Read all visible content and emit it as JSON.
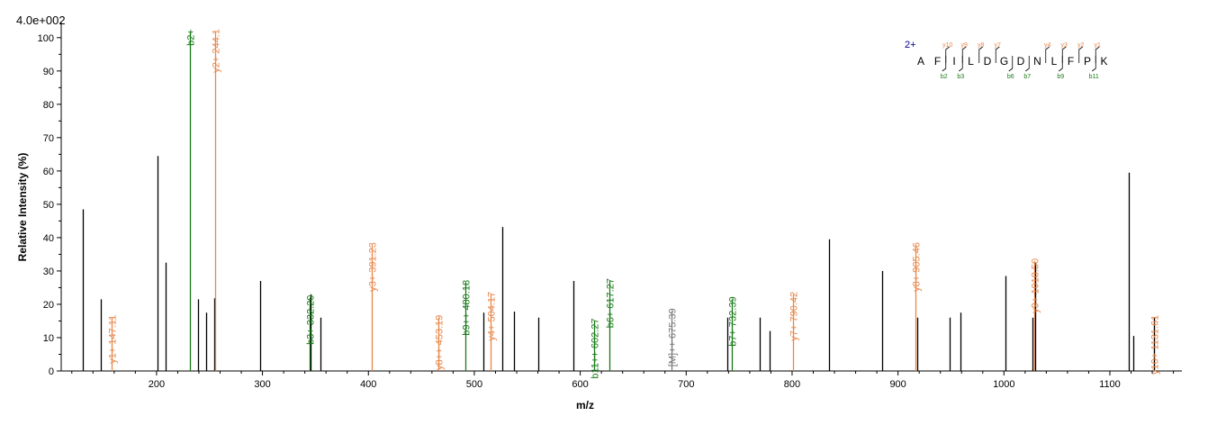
{
  "scale_label": "4.0e+002",
  "chart_data": {
    "type": "bar",
    "xlabel": "m/z",
    "ylabel": "Relative   Intensity (%)",
    "xlim": [
      110,
      1168
    ],
    "ylim": [
      0,
      104
    ],
    "x_ticks": [
      200,
      300,
      400,
      500,
      600,
      700,
      800,
      900,
      1000,
      1100
    ],
    "y_ticks": [
      0,
      10,
      20,
      30,
      40,
      50,
      60,
      70,
      80,
      90,
      100
    ],
    "colors": {
      "b": "#1a7a1a",
      "y": "#e8874a",
      "M": "#7a7a7a",
      "other": "#000000",
      "seq_charge": "#00008b"
    },
    "peaks": [
      {
        "mz": 130.2,
        "intensity": 48.5,
        "ion": "other"
      },
      {
        "mz": 147.11,
        "intensity": 21.5,
        "ion": "other"
      },
      {
        "mz": 158.0,
        "intensity": 16.0,
        "ion": "y",
        "label": "y1+ 147.11"
      },
      {
        "mz": 201.1,
        "intensity": 64.5,
        "ion": "other"
      },
      {
        "mz": 208.6,
        "intensity": 32.5,
        "ion": "other"
      },
      {
        "mz": 231.1,
        "intensity": 101.8,
        "ion": "b",
        "label": "b2+"
      },
      {
        "mz": 239.2,
        "intensity": 21.5,
        "ion": "other"
      },
      {
        "mz": 246.6,
        "intensity": 17.5,
        "ion": "other"
      },
      {
        "mz": 254.1,
        "intensity": 21.8,
        "ion": "other"
      },
      {
        "mz": 255.5,
        "intensity": 101.8,
        "ion": "y",
        "label": "y2+ 244.1"
      },
      {
        "mz": 297.7,
        "intensity": 27.0,
        "ion": "other"
      },
      {
        "mz": 344.2,
        "intensity": 22.0,
        "ion": "b",
        "label": "b3+ 332.20"
      },
      {
        "mz": 345.2,
        "intensity": 23.0,
        "ion": "other"
      },
      {
        "mz": 354.7,
        "intensity": 16.0,
        "ion": "other"
      },
      {
        "mz": 403.2,
        "intensity": 37.8,
        "ion": "y",
        "label": "y3+ 391.23"
      },
      {
        "mz": 466.4,
        "intensity": 16.0,
        "ion": "y",
        "label": "y8++ 453.19"
      },
      {
        "mz": 491.2,
        "intensity": 26.5,
        "ion": "b",
        "label": "b9++ 480.18"
      },
      {
        "mz": 508.7,
        "intensity": 17.5,
        "ion": "other"
      },
      {
        "mz": 515.7,
        "intensity": 23.0,
        "ion": "y",
        "label": "y4+ 504.17"
      },
      {
        "mz": 526.7,
        "intensity": 43.2,
        "ion": "other"
      },
      {
        "mz": 537.2,
        "intensity": 17.8,
        "ion": "other"
      },
      {
        "mz": 560.2,
        "intensity": 16.0,
        "ion": "other"
      },
      {
        "mz": 593.3,
        "intensity": 27.0,
        "ion": "other"
      },
      {
        "mz": 613.3,
        "intensity": 15.0,
        "ion": "b",
        "label": "b11++ 602.27"
      },
      {
        "mz": 627.3,
        "intensity": 27.0,
        "ion": "b",
        "label": "b6+ 617.27"
      },
      {
        "mz": 686.3,
        "intensity": 18.0,
        "ion": "M",
        "label": "[M]++ 675.39"
      },
      {
        "mz": 738.8,
        "intensity": 16.0,
        "ion": "other"
      },
      {
        "mz": 743.3,
        "intensity": 21.5,
        "ion": "b",
        "label": "b7+ 732.39"
      },
      {
        "mz": 769.3,
        "intensity": 16.0,
        "ion": "other"
      },
      {
        "mz": 778.8,
        "intensity": 12.0,
        "ion": "other"
      },
      {
        "mz": 801.3,
        "intensity": 23.0,
        "ion": "y",
        "label": "y7+ 790.42"
      },
      {
        "mz": 835.3,
        "intensity": 39.5,
        "ion": "other"
      },
      {
        "mz": 884.8,
        "intensity": 30.0,
        "ion": "other"
      },
      {
        "mz": 916.4,
        "intensity": 37.8,
        "ion": "y",
        "label": "y8+ 905.46"
      },
      {
        "mz": 917.9,
        "intensity": 16.0,
        "ion": "other"
      },
      {
        "mz": 948.4,
        "intensity": 16.0,
        "ion": "other"
      },
      {
        "mz": 958.9,
        "intensity": 17.5,
        "ion": "other"
      },
      {
        "mz": 1001.4,
        "intensity": 28.5,
        "ion": "other"
      },
      {
        "mz": 1026.9,
        "intensity": 16.0,
        "ion": "other"
      },
      {
        "mz": 1028.4,
        "intensity": 33.0,
        "ion": "y",
        "label": "y9+ 1018.50"
      },
      {
        "mz": 1029.4,
        "intensity": 32.5,
        "ion": "other"
      },
      {
        "mz": 1117.5,
        "intensity": 59.5,
        "ion": "other"
      },
      {
        "mz": 1122.0,
        "intensity": 10.5,
        "ion": "other"
      },
      {
        "mz": 1141.5,
        "intensity": 16.0,
        "ion": "y",
        "label": "y10+ 1131.61"
      },
      {
        "mz": 1142.0,
        "intensity": 16.0,
        "ion": "other"
      }
    ]
  },
  "sequence": {
    "charge": "2+",
    "residues": [
      "A",
      "F",
      "I",
      "L",
      "D",
      "G",
      "D",
      "N",
      "L",
      "F",
      "P",
      "K"
    ],
    "y_ions": [
      {
        "after": 2,
        "label": "y10"
      },
      {
        "after": 3,
        "label": "y9"
      },
      {
        "after": 4,
        "label": "y8"
      },
      {
        "after": 5,
        "label": "y7"
      },
      {
        "after": 8,
        "label": "y4"
      },
      {
        "after": 9,
        "label": "y3"
      },
      {
        "after": 10,
        "label": "y2"
      },
      {
        "after": 11,
        "label": "y1"
      }
    ],
    "b_ions": [
      {
        "after": 2,
        "label": "b2"
      },
      {
        "after": 3,
        "label": "b3"
      },
      {
        "after": 6,
        "label": "b6"
      },
      {
        "after": 7,
        "label": "b7"
      },
      {
        "after": 9,
        "label": "b9"
      },
      {
        "after": 11,
        "label": "b11"
      }
    ]
  }
}
